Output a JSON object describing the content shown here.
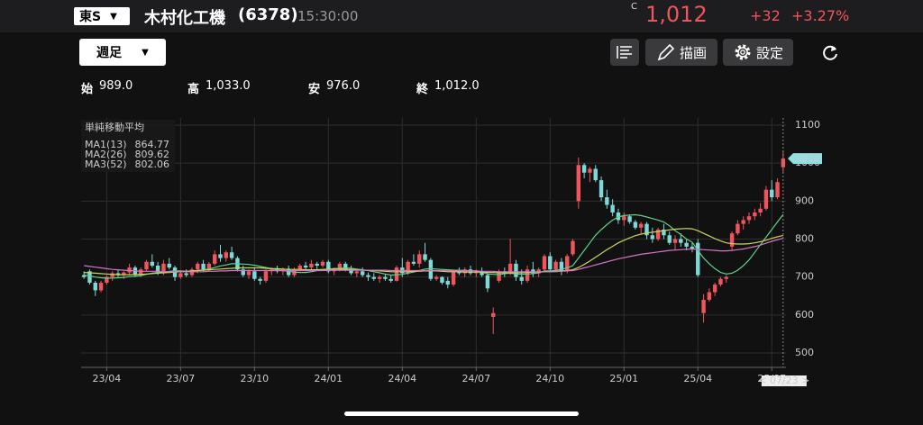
{
  "header": {
    "market": "東S",
    "name": "木村化工機",
    "code": "(6378)",
    "time": "15:30:00",
    "flag": "C",
    "price": "1,012",
    "change": "+32",
    "change_pct": "+3.27%"
  },
  "toolbar": {
    "period": "週足",
    "draw": "描画",
    "settings": "設定"
  },
  "ohlc_row": [
    {
      "label": "始",
      "value": "989.0"
    },
    {
      "label": "高",
      "value": "1,033.0"
    },
    {
      "label": "安",
      "value": "976.0"
    },
    {
      "label": "終",
      "value": "1,012.0"
    }
  ],
  "chart_data": {
    "type": "candlestick",
    "legend_title": "単純移動平均",
    "up_color": "#f0545c",
    "down_color": "#7fd8d8",
    "grid": true,
    "ylim": [
      462,
      1119
    ],
    "yticks": [
      500,
      600,
      700,
      800,
      900,
      1000,
      1100
    ],
    "xticks": [
      {
        "value": 4,
        "label": "23/04"
      },
      {
        "value": 17,
        "label": "23/07"
      },
      {
        "value": 30,
        "label": "23/10"
      },
      {
        "value": 43,
        "label": "24/01"
      },
      {
        "value": 56,
        "label": "24/04"
      },
      {
        "value": 69,
        "label": "24/07"
      },
      {
        "value": 82,
        "label": "24/10"
      },
      {
        "value": 95,
        "label": "25/01"
      },
      {
        "value": 108,
        "label": "25/04"
      },
      {
        "value": 121,
        "label": "25/07"
      }
    ],
    "last_label": "1012",
    "cursor_label": "< 07/23 >",
    "ohlc": [
      [
        705,
        715,
        695,
        700
      ],
      [
        715,
        720,
        680,
        685
      ],
      [
        685,
        690,
        650,
        665
      ],
      [
        665,
        690,
        660,
        685
      ],
      [
        685,
        705,
        680,
        700
      ],
      [
        700,
        715,
        690,
        710
      ],
      [
        710,
        720,
        700,
        705
      ],
      [
        705,
        715,
        695,
        712
      ],
      [
        712,
        735,
        705,
        725
      ],
      [
        725,
        730,
        700,
        705
      ],
      [
        705,
        725,
        700,
        720
      ],
      [
        720,
        745,
        715,
        740
      ],
      [
        740,
        760,
        725,
        730
      ],
      [
        730,
        740,
        705,
        710
      ],
      [
        710,
        745,
        705,
        735
      ],
      [
        735,
        750,
        720,
        725
      ],
      [
        725,
        730,
        690,
        700
      ],
      [
        700,
        715,
        695,
        710
      ],
      [
        710,
        720,
        700,
        705
      ],
      [
        705,
        725,
        700,
        720
      ],
      [
        720,
        740,
        710,
        735
      ],
      [
        735,
        745,
        715,
        720
      ],
      [
        720,
        740,
        715,
        735
      ],
      [
        735,
        770,
        730,
        760
      ],
      [
        760,
        785,
        740,
        750
      ],
      [
        750,
        770,
        740,
        765
      ],
      [
        765,
        780,
        745,
        750
      ],
      [
        750,
        755,
        715,
        720
      ],
      [
        720,
        730,
        700,
        705
      ],
      [
        705,
        720,
        695,
        715
      ],
      [
        715,
        725,
        690,
        695
      ],
      [
        695,
        700,
        680,
        690
      ],
      [
        690,
        720,
        685,
        715
      ],
      [
        715,
        725,
        705,
        720
      ],
      [
        720,
        730,
        710,
        715
      ],
      [
        715,
        725,
        705,
        722
      ],
      [
        722,
        730,
        700,
        705
      ],
      [
        705,
        725,
        700,
        720
      ],
      [
        720,
        735,
        715,
        730
      ],
      [
        730,
        740,
        715,
        725
      ],
      [
        725,
        745,
        720,
        735
      ],
      [
        735,
        740,
        720,
        730
      ],
      [
        730,
        745,
        725,
        740
      ],
      [
        740,
        745,
        710,
        715
      ],
      [
        715,
        725,
        705,
        720
      ],
      [
        720,
        740,
        715,
        735
      ],
      [
        735,
        740,
        715,
        720
      ],
      [
        720,
        730,
        705,
        710
      ],
      [
        710,
        720,
        700,
        715
      ],
      [
        715,
        725,
        700,
        705
      ],
      [
        705,
        712,
        690,
        700
      ],
      [
        700,
        710,
        690,
        695
      ],
      [
        695,
        705,
        685,
        700
      ],
      [
        700,
        708,
        690,
        695
      ],
      [
        695,
        705,
        685,
        690
      ],
      [
        690,
        730,
        688,
        725
      ],
      [
        725,
        750,
        700,
        710
      ],
      [
        710,
        745,
        705,
        740
      ],
      [
        740,
        760,
        730,
        735
      ],
      [
        735,
        770,
        725,
        760
      ],
      [
        760,
        790,
        740,
        745
      ],
      [
        745,
        750,
        690,
        695
      ],
      [
        695,
        705,
        690,
        700
      ],
      [
        700,
        702,
        680,
        685
      ],
      [
        690,
        700,
        670,
        680
      ],
      [
        680,
        720,
        675,
        715
      ],
      [
        715,
        725,
        705,
        710
      ],
      [
        710,
        725,
        700,
        720
      ],
      [
        720,
        730,
        705,
        710
      ],
      [
        710,
        720,
        700,
        715
      ],
      [
        715,
        725,
        700,
        705
      ],
      [
        705,
        710,
        660,
        670
      ],
      [
        595,
        620,
        550,
        605
      ],
      [
        690,
        720,
        685,
        715
      ],
      [
        715,
        725,
        700,
        710
      ],
      [
        710,
        800,
        705,
        735
      ],
      [
        735,
        745,
        690,
        700
      ],
      [
        700,
        720,
        680,
        690
      ],
      [
        690,
        730,
        685,
        720
      ],
      [
        720,
        740,
        700,
        710
      ],
      [
        710,
        725,
        700,
        720
      ],
      [
        720,
        760,
        715,
        755
      ],
      [
        755,
        765,
        715,
        720
      ],
      [
        720,
        745,
        715,
        740
      ],
      [
        740,
        750,
        705,
        715
      ],
      [
        715,
        760,
        710,
        755
      ],
      [
        760,
        800,
        755,
        795
      ],
      [
        900,
        1015,
        880,
        995
      ],
      [
        995,
        1000,
        960,
        975
      ],
      [
        975,
        990,
        950,
        985
      ],
      [
        985,
        995,
        950,
        955
      ],
      [
        955,
        965,
        900,
        910
      ],
      [
        910,
        930,
        880,
        890
      ],
      [
        890,
        905,
        860,
        870
      ],
      [
        870,
        880,
        840,
        850
      ],
      [
        850,
        870,
        835,
        860
      ],
      [
        860,
        865,
        840,
        845
      ],
      [
        845,
        850,
        825,
        830
      ],
      [
        830,
        845,
        815,
        840
      ],
      [
        840,
        845,
        800,
        810
      ],
      [
        810,
        830,
        790,
        800
      ],
      [
        800,
        830,
        795,
        825
      ],
      [
        825,
        840,
        800,
        810
      ],
      [
        810,
        820,
        785,
        790
      ],
      [
        790,
        810,
        770,
        800
      ],
      [
        800,
        815,
        780,
        790
      ],
      [
        790,
        800,
        770,
        780
      ],
      [
        780,
        790,
        765,
        775
      ],
      [
        790,
        800,
        700,
        705
      ],
      [
        605,
        655,
        580,
        640
      ],
      [
        640,
        670,
        635,
        660
      ],
      [
        660,
        685,
        650,
        680
      ],
      [
        680,
        700,
        675,
        695
      ],
      [
        695,
        705,
        685,
        700
      ],
      [
        780,
        820,
        770,
        815
      ],
      [
        815,
        850,
        810,
        840
      ],
      [
        840,
        860,
        825,
        850
      ],
      [
        850,
        870,
        840,
        860
      ],
      [
        860,
        880,
        850,
        870
      ],
      [
        870,
        895,
        860,
        880
      ],
      [
        880,
        940,
        875,
        930
      ],
      [
        930,
        955,
        900,
        910
      ],
      [
        910,
        960,
        905,
        950
      ],
      [
        989,
        1033,
        976,
        1012
      ]
    ],
    "series": [
      {
        "name": "MA1(13)",
        "legend_value": "864.77",
        "color": "#5fd08a",
        "values": [
          705,
          703,
          700,
          698,
          697,
          697,
          698,
          699,
          701,
          702,
          704,
          707,
          710,
          712,
          713,
          715,
          716,
          716,
          715,
          715,
          717,
          719,
          721,
          725,
          729,
          732,
          735,
          735,
          734,
          733,
          731,
          728,
          725,
          722,
          719,
          717,
          715,
          713,
          712,
          712,
          714,
          717,
          719,
          721,
          722,
          723,
          724,
          723,
          721,
          719,
          717,
          714,
          711,
          708,
          705,
          706,
          707,
          710,
          713,
          717,
          721,
          722,
          721,
          720,
          719,
          718,
          718,
          717,
          716,
          716,
          714,
          708,
          707,
          706,
          709,
          710,
          708,
          707,
          708,
          709,
          711,
          716,
          716,
          718,
          720,
          724,
          730,
          750,
          770,
          790,
          810,
          825,
          838,
          850,
          858,
          862,
          863,
          864,
          862,
          858,
          854,
          850,
          845,
          835,
          822,
          812,
          800,
          792,
          770,
          750,
          735,
          722,
          712,
          708,
          710,
          718,
          730,
          745,
          765,
          785,
          805,
          825,
          845,
          864.77
        ]
      },
      {
        "name": "MA2(26)",
        "legend_value": "809.62",
        "color": "#c9d35a",
        "values": [
          712,
          711,
          710,
          709,
          708,
          707,
          706,
          706,
          706,
          707,
          707,
          708,
          709,
          710,
          711,
          712,
          713,
          714,
          715,
          716,
          717,
          718,
          719,
          720,
          721,
          722,
          723,
          724,
          724,
          724,
          724,
          724,
          723,
          722,
          722,
          721,
          720,
          720,
          720,
          719,
          719,
          719,
          720,
          721,
          721,
          721,
          720,
          720,
          719,
          718,
          718,
          717,
          716,
          715,
          714,
          714,
          714,
          714,
          715,
          715,
          716,
          716,
          716,
          715,
          714,
          714,
          714,
          713,
          713,
          713,
          713,
          712,
          712,
          711,
          711,
          711,
          711,
          711,
          712,
          713,
          713,
          714,
          714,
          715,
          716,
          717,
          719,
          725,
          733,
          742,
          752,
          762,
          772,
          781,
          790,
          797,
          803,
          809,
          813,
          816,
          818,
          820,
          822,
          824,
          826,
          827,
          828,
          827,
          822,
          815,
          808,
          801,
          795,
          790,
          788,
          787,
          787,
          788,
          790,
          793,
          797,
          802,
          806,
          809.62
        ]
      },
      {
        "name": "MA3(52)",
        "legend_value": "802.06",
        "color": "#d873c8",
        "values": [
          730,
          728,
          726,
          724,
          722,
          720,
          719,
          718,
          717,
          716,
          715,
          715,
          715,
          715,
          714,
          714,
          714,
          714,
          714,
          714,
          714,
          714,
          715,
          715,
          716,
          716,
          717,
          717,
          717,
          717,
          717,
          717,
          717,
          717,
          717,
          717,
          717,
          717,
          717,
          717,
          717,
          717,
          717,
          718,
          718,
          718,
          718,
          718,
          718,
          718,
          718,
          718,
          718,
          718,
          717,
          717,
          717,
          717,
          717,
          717,
          717,
          717,
          717,
          717,
          716,
          716,
          716,
          716,
          716,
          716,
          715,
          715,
          715,
          714,
          714,
          714,
          714,
          714,
          714,
          714,
          714,
          714,
          714,
          714,
          715,
          716,
          717,
          720,
          724,
          728,
          732,
          736,
          740,
          744,
          748,
          751,
          754,
          757,
          760,
          762,
          764,
          766,
          768,
          770,
          771,
          772,
          773,
          774,
          773,
          772,
          771,
          770,
          769,
          769,
          770,
          772,
          774,
          777,
          780,
          784,
          789,
          794,
          798,
          802.06
        ]
      }
    ]
  }
}
